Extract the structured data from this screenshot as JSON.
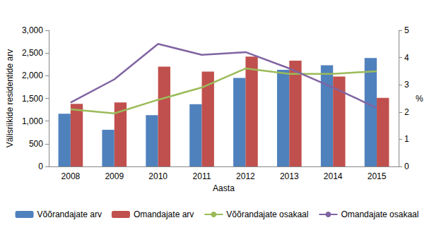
{
  "chart_data": {
    "type": "bar",
    "x_label": "Aasta",
    "y_label": "Välisriikide residentide arv",
    "y2_label": "%",
    "categories": [
      "2008",
      "2009",
      "2010",
      "2011",
      "2012",
      "2013",
      "2014",
      "2015"
    ],
    "series": [
      {
        "name": "Võõrandajate arv",
        "type": "bar",
        "color": "#4f81bd",
        "values": [
          1160,
          810,
          1130,
          1370,
          1950,
          2130,
          2230,
          2390
        ]
      },
      {
        "name": "Omandajate arv",
        "type": "bar",
        "color": "#c0504d",
        "values": [
          1380,
          1410,
          2200,
          2090,
          2420,
          2330,
          1980,
          1510
        ]
      },
      {
        "name": "Võõrandajate osakaal",
        "type": "line",
        "axis": "y2",
        "color": "#9bbb59",
        "values": [
          2.1,
          1.95,
          2.45,
          2.9,
          3.6,
          3.4,
          3.4,
          3.5
        ]
      },
      {
        "name": "Omandajate osakaal",
        "type": "line",
        "axis": "y2",
        "color": "#8064a2",
        "values": [
          2.35,
          3.2,
          4.5,
          4.1,
          4.2,
          3.6,
          2.9,
          2.15
        ]
      }
    ],
    "ylim": [
      0,
      3000
    ],
    "yticks": [
      0,
      500,
      1000,
      1500,
      2000,
      2500,
      3000
    ],
    "y2lim": [
      0,
      5
    ],
    "y2ticks": [
      0,
      1,
      2,
      3,
      4,
      5
    ],
    "grid": false,
    "legend": "bottom"
  }
}
